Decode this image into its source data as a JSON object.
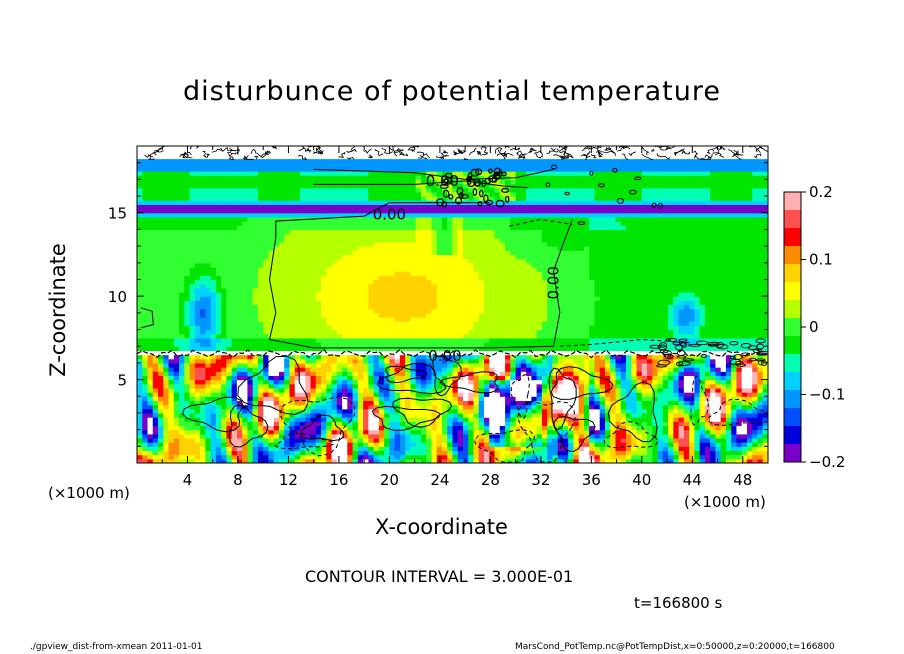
{
  "chart_data": {
    "type": "heatmap",
    "title": "disturbunce of potential temperature",
    "xlabel": "X-coordinate",
    "ylabel": "Z-coordinate",
    "x_unit_label": "(×1000 m)",
    "xlim": [
      0,
      50
    ],
    "ylim": [
      0,
      19
    ],
    "x_ticks": [
      4,
      8,
      12,
      16,
      20,
      24,
      28,
      32,
      36,
      40,
      44,
      48
    ],
    "y_ticks": [
      5,
      10,
      15
    ],
    "colorbar": {
      "range": [
        -0.2,
        0.2
      ],
      "tick_values": [
        0.2,
        0.1,
        0,
        -0.1,
        -0.2
      ],
      "tick_labels": [
        "0.2",
        "0.1",
        "0",
        "−0.1",
        "−0.2"
      ],
      "colors": [
        "#ffb0b0",
        "#ff5050",
        "#ff0000",
        "#ff8c00",
        "#ffd200",
        "#ffff00",
        "#b4ff00",
        "#32ff32",
        "#00e600",
        "#00ffb4",
        "#00d2ff",
        "#0096ff",
        "#0050ff",
        "#0000dc",
        "#7800c8"
      ]
    },
    "contour_labels": [
      {
        "text": "0.00",
        "x": 24.2,
        "z": 16.9
      },
      {
        "text": "0.00",
        "x": 20.0,
        "z": 14.9
      },
      {
        "text": "0.00",
        "x": 33.4,
        "z": 10.8
      },
      {
        "text": "0.00",
        "x": 24.4,
        "z": 6.4
      }
    ],
    "regions": [
      {
        "name": "upper-noisy-band",
        "z": [
          18.2,
          19
        ],
        "value": 0
      },
      {
        "name": "upper-layer",
        "z": [
          15.6,
          18.0
        ],
        "value": -0.05
      },
      {
        "name": "cold-stripe",
        "z": [
          14.9,
          15.5
        ],
        "value": -0.2
      },
      {
        "name": "middle-layer",
        "z": [
          6.8,
          14.8
        ],
        "value": 0.03
      },
      {
        "name": "lower-convective-layer",
        "z": [
          0,
          6.5
        ],
        "value": 0
      }
    ]
  },
  "contour_interval": "CONTOUR INTERVAL = 3.000E-01",
  "time_label": "t=166800 s",
  "footer_left": "./gpview_dist-from-xmean   2011-01-01",
  "footer_right": "MarsCond_PotTemp.nc@PotTempDist,x=0:50000,z=0:20000,t=166800"
}
